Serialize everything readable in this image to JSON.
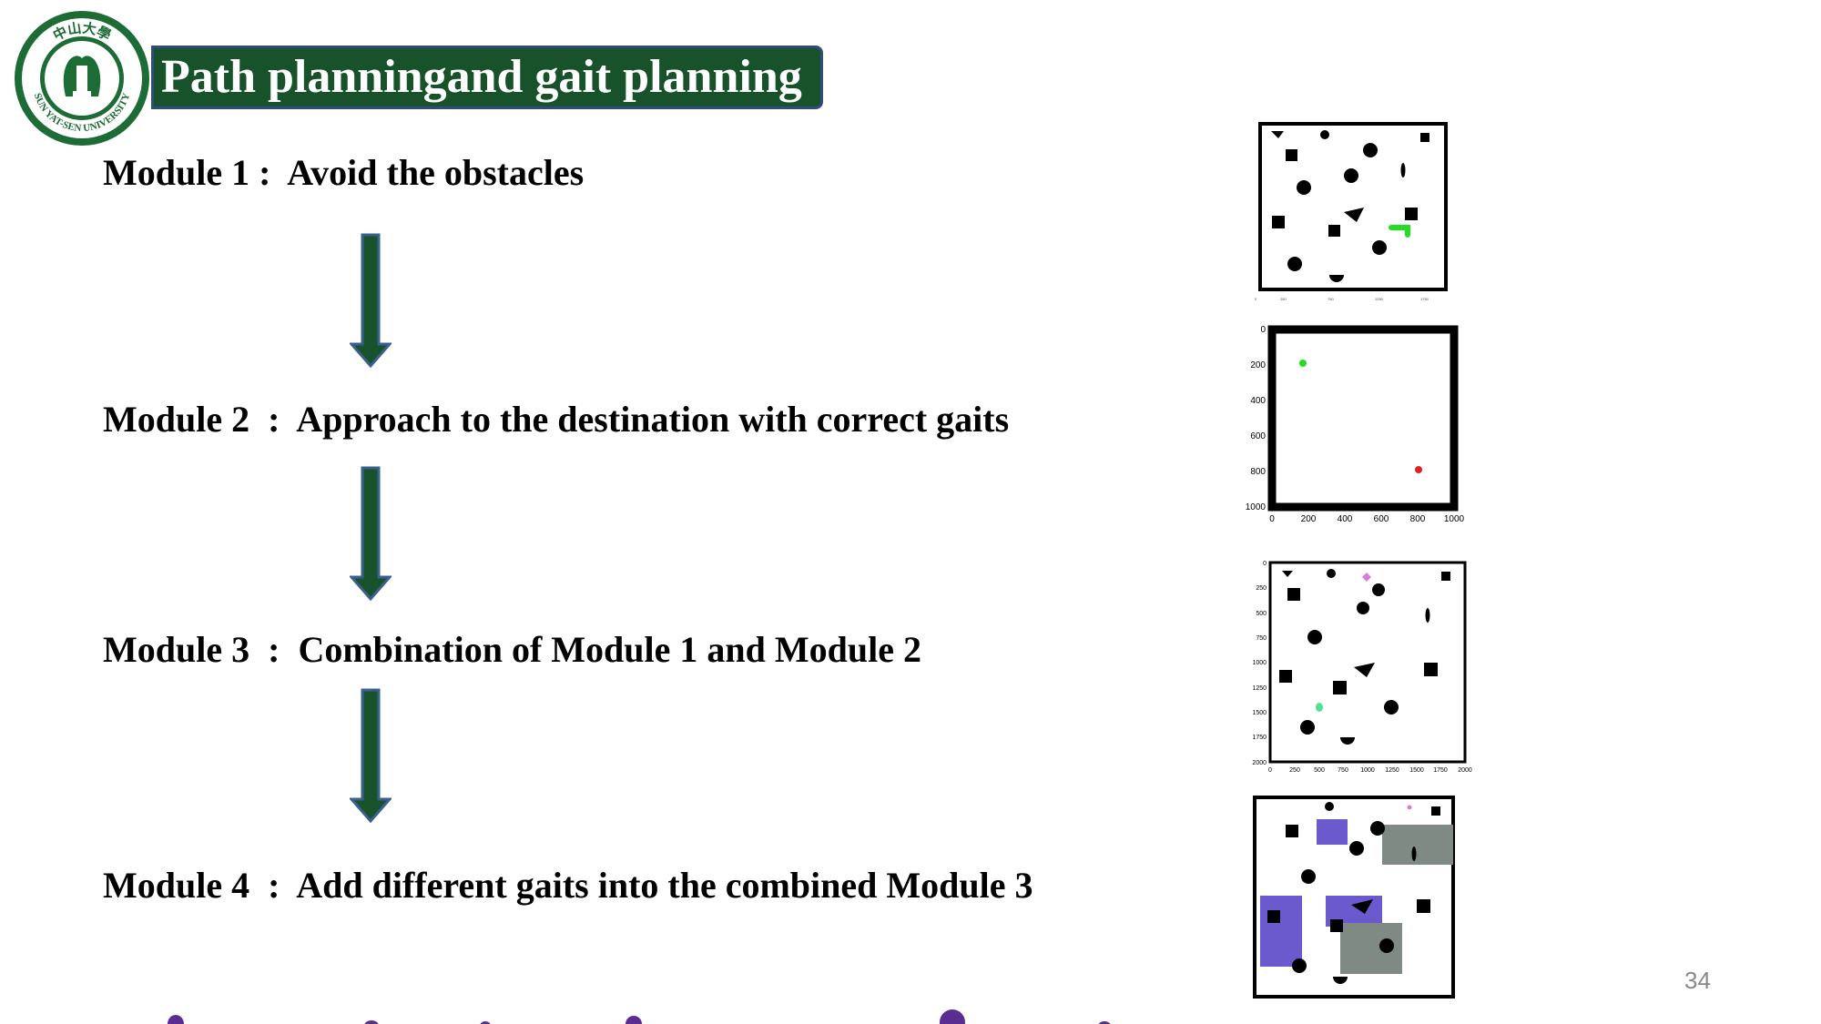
{
  "header": {
    "title": "Path planningand gait planning",
    "logo": {
      "chinese_text": "中山大學",
      "english_text": "SUN YAT-SEN UNIVERSITY",
      "icon": "university-seal"
    }
  },
  "modules": [
    {
      "number": "Module 1",
      "separator": " :  ",
      "text": "Avoid the obstacles"
    },
    {
      "number": "Module 2",
      "separator": "  :  ",
      "text": "Approach to the destination with correct gaits"
    },
    {
      "number": "Module 3",
      "separator": "  :  ",
      "text": "Combination of Module 1 and Module 2"
    },
    {
      "number": "Module 4",
      "separator": "  :  ",
      "text": "Add different gaits into the combined Module 3"
    }
  ],
  "flow_arrow_icon": "down-arrow-icon",
  "plots": {
    "plot2": {
      "y_ticks": [
        "0",
        "200",
        "400",
        "600",
        "800",
        "1000"
      ],
      "x_ticks": [
        "0",
        "200",
        "400",
        "600",
        "800",
        "1000"
      ]
    },
    "plot3": {
      "y_ticks": [
        "0",
        "250",
        "500",
        "750",
        "1000",
        "1250",
        "1500",
        "1750",
        "2000"
      ],
      "x_ticks": [
        "0",
        "250",
        "500",
        "750",
        "1000",
        "1250",
        "1500",
        "1750",
        "2000"
      ]
    }
  },
  "colors": {
    "title_bar": "#17522b",
    "title_border": "#2f4c7a",
    "arrow_fill": "#17522b",
    "arrow_stroke": "#3b5f8f",
    "path_green": "#22dd22",
    "goal_red": "#e02020",
    "marker_pink": "#d77fd7",
    "marker_mint": "#55dd99",
    "gait_purple": "#6a5acd",
    "gait_gray": "#7f8a85"
  },
  "page_number": "34"
}
